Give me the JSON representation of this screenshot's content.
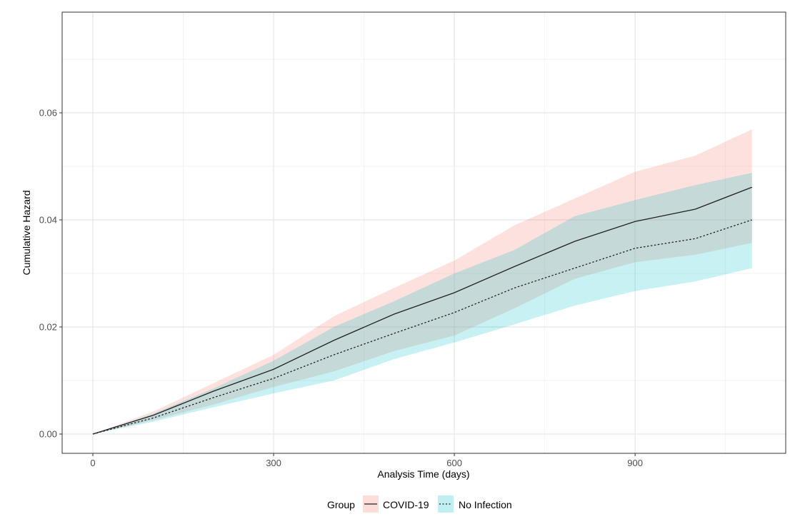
{
  "chart_data": {
    "type": "area",
    "title": "",
    "xlabel": "Analysis Time (days)",
    "ylabel": "Cumulative Hazard",
    "xlim": [
      -51,
      1150
    ],
    "ylim": [
      -0.0036,
      0.0788
    ],
    "x_ticks": [
      0,
      300,
      600,
      900
    ],
    "x_tick_labels": [
      "0",
      "300",
      "600",
      "900"
    ],
    "y_ticks": [
      0,
      0.02,
      0.04,
      0.06
    ],
    "y_tick_labels": [
      "0.00",
      "0.02",
      "0.04",
      "0.06"
    ],
    "grid": true,
    "legend": {
      "position": "bottom",
      "title": "Group"
    },
    "x": [
      0,
      100,
      200,
      300,
      400,
      500,
      600,
      700,
      800,
      900,
      1000,
      1094
    ],
    "series": [
      {
        "name": "COVID-19",
        "line_style": "solid",
        "color": "#F8766D",
        "values": [
          0,
          0.0035,
          0.008,
          0.0121,
          0.0175,
          0.0224,
          0.0264,
          0.0313,
          0.036,
          0.0397,
          0.042,
          0.0461
        ],
        "lower": [
          0,
          0.0026,
          0.0055,
          0.0088,
          0.0117,
          0.0155,
          0.0184,
          0.0235,
          0.029,
          0.0321,
          0.0335,
          0.0357
        ],
        "upper": [
          0,
          0.0042,
          0.0095,
          0.0148,
          0.022,
          0.0273,
          0.0324,
          0.039,
          0.044,
          0.049,
          0.052,
          0.0569
        ]
      },
      {
        "name": "No Infection",
        "line_style": "dotted",
        "color": "#00BFC4",
        "values": [
          0,
          0.003,
          0.0068,
          0.0104,
          0.0148,
          0.0188,
          0.0227,
          0.0273,
          0.031,
          0.0347,
          0.0365,
          0.04
        ],
        "lower": [
          0,
          0.0023,
          0.005,
          0.0076,
          0.01,
          0.014,
          0.0171,
          0.0205,
          0.024,
          0.0267,
          0.0285,
          0.031
        ],
        "upper": [
          0,
          0.0038,
          0.0085,
          0.0137,
          0.02,
          0.0248,
          0.03,
          0.0344,
          0.0407,
          0.0437,
          0.0465,
          0.0488
        ]
      }
    ]
  }
}
